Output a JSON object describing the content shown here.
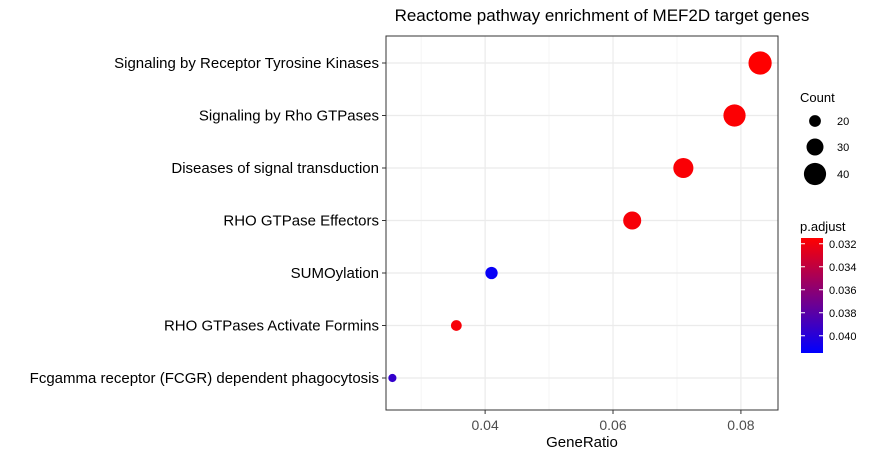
{
  "chart_data": {
    "type": "scatter",
    "title": "Reactome pathway enrichment of MEF2D target genes",
    "xlabel": "GeneRatio",
    "ylabel": "",
    "xlim": [
      0.0245,
      0.0858
    ],
    "x_ticks": [
      {
        "value": 0.04,
        "label": "0.04"
      },
      {
        "value": 0.06,
        "label": "0.06"
      },
      {
        "value": 0.08,
        "label": "0.08"
      }
    ],
    "grid": true,
    "categories": [
      "Signaling by Receptor Tyrosine Kinases",
      "Signaling by Rho GTPases",
      "Diseases of signal transduction",
      "RHO GTPase Effectors",
      "SUMOylation",
      "RHO GTPases Activate Formins",
      "Fcgamma receptor (FCGR) dependent phagocytosis"
    ],
    "points": [
      {
        "category": "Signaling by Receptor Tyrosine Kinases",
        "gene_ratio": 0.083,
        "count": 42,
        "p_adjust": 0.0315
      },
      {
        "category": "Signaling by Rho GTPases",
        "gene_ratio": 0.079,
        "count": 40,
        "p_adjust": 0.0316
      },
      {
        "category": "Diseases of signal transduction",
        "gene_ratio": 0.071,
        "count": 36,
        "p_adjust": 0.0317
      },
      {
        "category": "RHO GTPase Effectors",
        "gene_ratio": 0.063,
        "count": 32,
        "p_adjust": 0.0318
      },
      {
        "category": "SUMOylation",
        "gene_ratio": 0.041,
        "count": 21,
        "p_adjust": 0.0412
      },
      {
        "category": "RHO GTPases Activate Formins",
        "gene_ratio": 0.0355,
        "count": 18,
        "p_adjust": 0.0318
      },
      {
        "category": "Fcgamma receptor (FCGR) dependent phagocytosis",
        "gene_ratio": 0.0255,
        "count": 13,
        "p_adjust": 0.0395
      }
    ],
    "legend_position": "right",
    "size_legend": {
      "title": "Count",
      "entries": [
        {
          "value": 20,
          "label": "20"
        },
        {
          "value": 30,
          "label": "30"
        },
        {
          "value": 40,
          "label": "40"
        }
      ]
    },
    "color_legend": {
      "title": "p.adjust",
      "range": [
        0.0315,
        0.0415
      ],
      "low_color": "#ff0000",
      "high_color": "#0000ff",
      "ticks": [
        {
          "value": 0.032,
          "label": "0.032"
        },
        {
          "value": 0.034,
          "label": "0.034"
        },
        {
          "value": 0.036,
          "label": "0.036"
        },
        {
          "value": 0.038,
          "label": "0.038"
        },
        {
          "value": 0.04,
          "label": "0.040"
        }
      ]
    },
    "colors": {
      "panel_border": "#333333",
      "grid_major": "#ebebeb",
      "grid_minor": "#f5f5f5"
    }
  }
}
